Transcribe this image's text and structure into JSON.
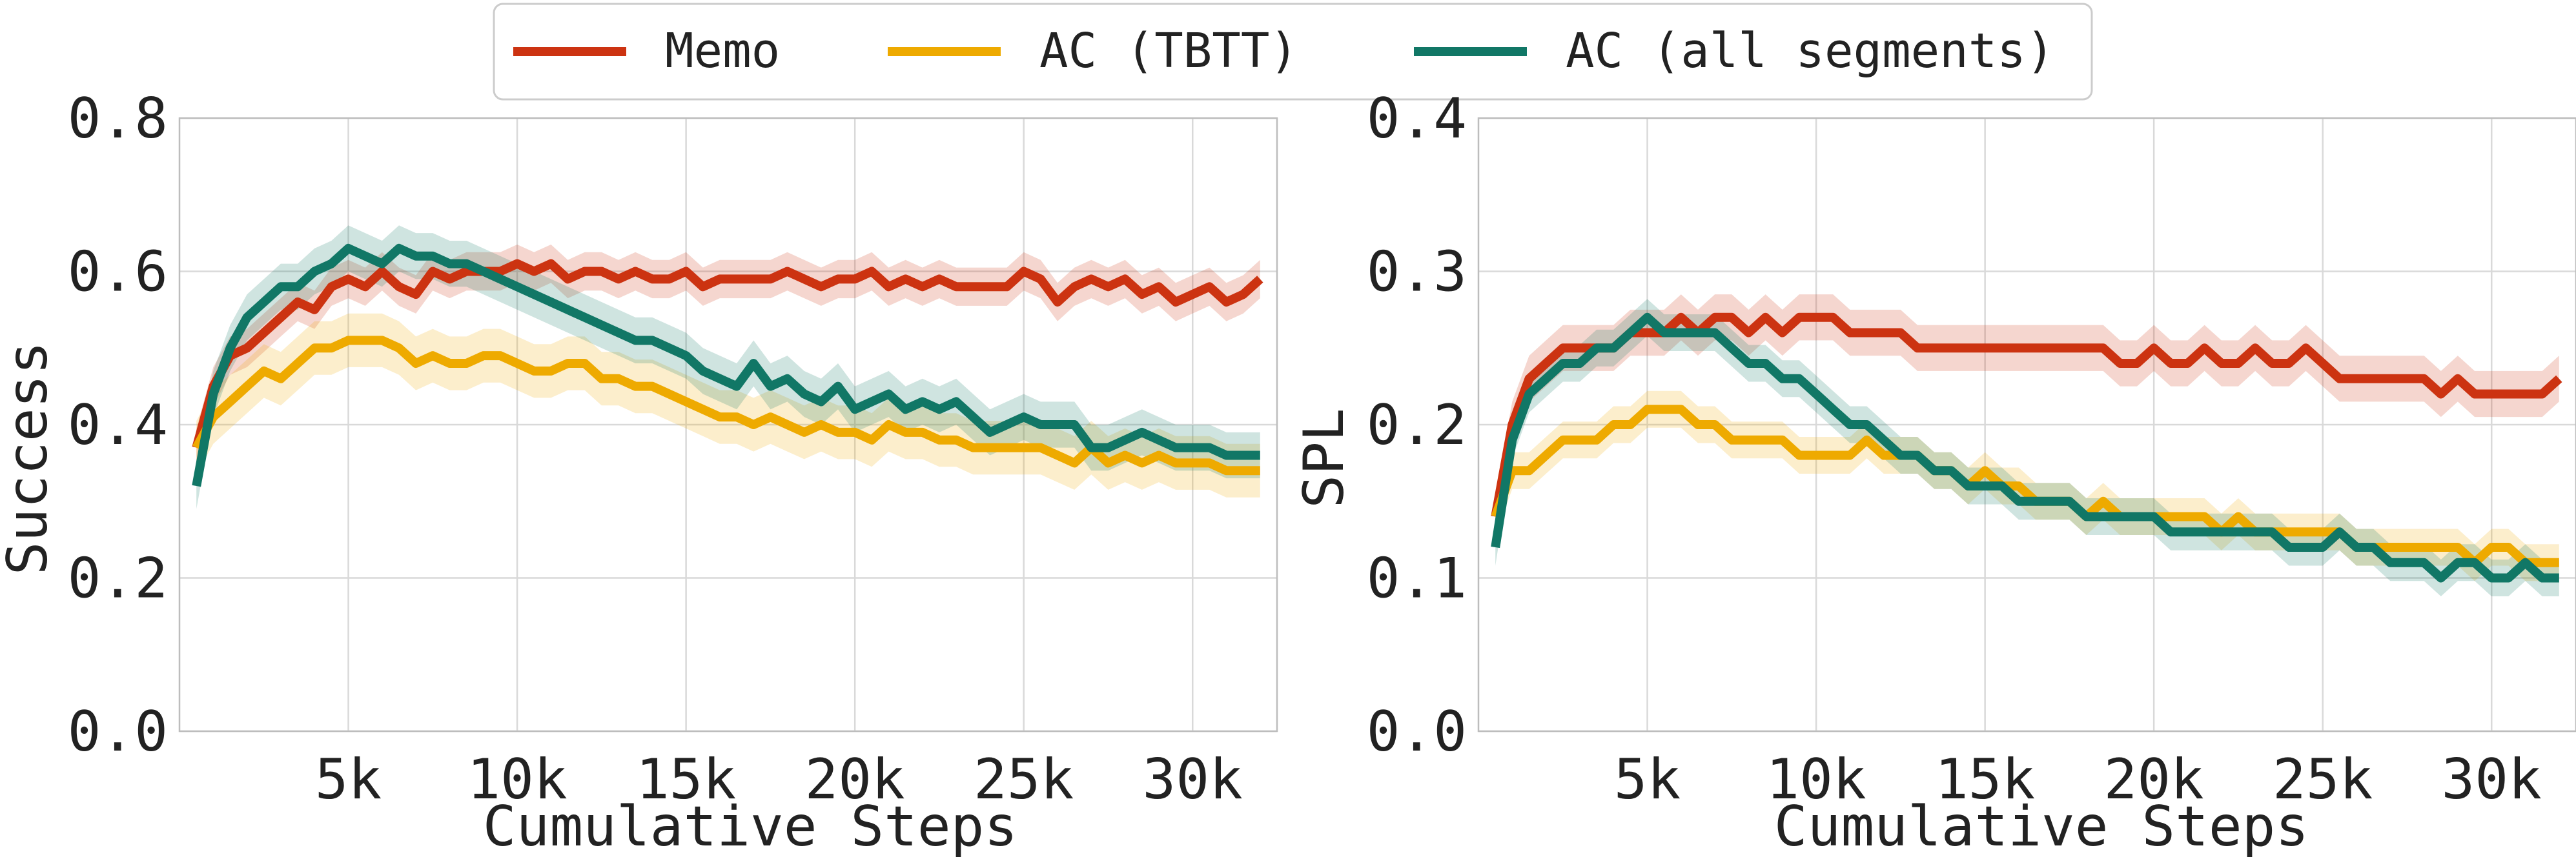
{
  "legend": {
    "entries": [
      {
        "label": "Memo",
        "color": "#cc3311"
      },
      {
        "label": "AC (TBTT)",
        "color": "#eeaa00"
      },
      {
        "label": "AC (all segments)",
        "color": "#117766"
      }
    ]
  },
  "chart_data": [
    {
      "type": "line",
      "title": "",
      "xlabel": "Cumulative Steps",
      "ylabel": "Success",
      "xlim": [
        0,
        32500
      ],
      "ylim": [
        0.0,
        0.8
      ],
      "xticks": [
        5000,
        10000,
        15000,
        20000,
        25000,
        30000
      ],
      "xtick_labels": [
        "5k",
        "10k",
        "15k",
        "20k",
        "25k",
        "30k"
      ],
      "yticks": [
        0.0,
        0.2,
        0.4,
        0.6,
        0.8
      ],
      "ytick_labels": [
        "0.0",
        "0.2",
        "0.4",
        "0.6",
        "0.8"
      ],
      "grid": true,
      "x": [
        500,
        1000,
        1500,
        2000,
        2500,
        3000,
        3500,
        4000,
        4500,
        5000,
        5500,
        6000,
        6500,
        7000,
        7500,
        8000,
        8500,
        9000,
        9500,
        10000,
        10500,
        11000,
        11500,
        12000,
        12500,
        13000,
        13500,
        14000,
        14500,
        15000,
        15500,
        16000,
        16500,
        17000,
        17500,
        18000,
        18500,
        19000,
        19500,
        20000,
        20500,
        21000,
        21500,
        22000,
        22500,
        23000,
        23500,
        24000,
        24500,
        25000,
        25500,
        26000,
        26500,
        27000,
        27500,
        28000,
        28500,
        29000,
        29500,
        30000,
        30500,
        31000,
        31500,
        32000
      ],
      "series": [
        {
          "name": "Memo",
          "band": 0.025,
          "values": [
            0.37,
            0.45,
            0.49,
            0.5,
            0.52,
            0.54,
            0.56,
            0.55,
            0.58,
            0.59,
            0.58,
            0.6,
            0.58,
            0.57,
            0.6,
            0.59,
            0.6,
            0.6,
            0.6,
            0.61,
            0.6,
            0.61,
            0.59,
            0.6,
            0.6,
            0.59,
            0.6,
            0.59,
            0.59,
            0.6,
            0.58,
            0.59,
            0.59,
            0.59,
            0.59,
            0.6,
            0.59,
            0.58,
            0.59,
            0.59,
            0.6,
            0.58,
            0.59,
            0.58,
            0.59,
            0.58,
            0.58,
            0.58,
            0.58,
            0.6,
            0.59,
            0.56,
            0.58,
            0.59,
            0.58,
            0.59,
            0.57,
            0.58,
            0.56,
            0.57,
            0.58,
            0.56,
            0.57,
            0.59
          ]
        },
        {
          "name": "AC (TBTT)",
          "band": 0.035,
          "values": [
            0.37,
            0.41,
            0.43,
            0.45,
            0.47,
            0.46,
            0.48,
            0.5,
            0.5,
            0.51,
            0.51,
            0.51,
            0.5,
            0.48,
            0.49,
            0.48,
            0.48,
            0.49,
            0.49,
            0.48,
            0.47,
            0.47,
            0.48,
            0.48,
            0.46,
            0.46,
            0.45,
            0.45,
            0.44,
            0.43,
            0.42,
            0.41,
            0.41,
            0.4,
            0.41,
            0.4,
            0.39,
            0.4,
            0.39,
            0.39,
            0.38,
            0.4,
            0.39,
            0.39,
            0.38,
            0.38,
            0.37,
            0.37,
            0.37,
            0.37,
            0.37,
            0.36,
            0.35,
            0.37,
            0.35,
            0.36,
            0.35,
            0.36,
            0.35,
            0.35,
            0.35,
            0.34,
            0.34,
            0.34
          ]
        },
        {
          "name": "AC (all segments)",
          "band": 0.03,
          "values": [
            0.32,
            0.44,
            0.5,
            0.54,
            0.56,
            0.58,
            0.58,
            0.6,
            0.61,
            0.63,
            0.62,
            0.61,
            0.63,
            0.62,
            0.62,
            0.61,
            0.61,
            0.6,
            0.59,
            0.58,
            0.57,
            0.56,
            0.55,
            0.54,
            0.53,
            0.52,
            0.51,
            0.51,
            0.5,
            0.49,
            0.47,
            0.46,
            0.45,
            0.48,
            0.45,
            0.46,
            0.44,
            0.43,
            0.45,
            0.42,
            0.43,
            0.44,
            0.42,
            0.43,
            0.42,
            0.43,
            0.41,
            0.39,
            0.4,
            0.41,
            0.4,
            0.4,
            0.4,
            0.37,
            0.37,
            0.38,
            0.39,
            0.38,
            0.37,
            0.37,
            0.37,
            0.36,
            0.36,
            0.36
          ]
        }
      ]
    },
    {
      "type": "line",
      "title": "",
      "xlabel": "Cumulative Steps",
      "ylabel": "SPL",
      "xlim": [
        0,
        32500
      ],
      "ylim": [
        0.0,
        0.4
      ],
      "xticks": [
        5000,
        10000,
        15000,
        20000,
        25000,
        30000
      ],
      "xtick_labels": [
        "5k",
        "10k",
        "15k",
        "20k",
        "25k",
        "30k"
      ],
      "yticks": [
        0.0,
        0.1,
        0.2,
        0.3,
        0.4
      ],
      "ytick_labels": [
        "0.0",
        "0.1",
        "0.2",
        "0.3",
        "0.4"
      ],
      "grid": true,
      "x": [
        500,
        1000,
        1500,
        2000,
        2500,
        3000,
        3500,
        4000,
        4500,
        5000,
        5500,
        6000,
        6500,
        7000,
        7500,
        8000,
        8500,
        9000,
        9500,
        10000,
        10500,
        11000,
        11500,
        12000,
        12500,
        13000,
        13500,
        14000,
        14500,
        15000,
        15500,
        16000,
        16500,
        17000,
        17500,
        18000,
        18500,
        19000,
        19500,
        20000,
        20500,
        21000,
        21500,
        22000,
        22500,
        23000,
        23500,
        24000,
        24500,
        25000,
        25500,
        26000,
        26500,
        27000,
        27500,
        28000,
        28500,
        29000,
        29500,
        30000,
        30500,
        31000,
        31500,
        32000
      ],
      "series": [
        {
          "name": "Memo",
          "band": 0.015,
          "values": [
            0.14,
            0.2,
            0.23,
            0.24,
            0.25,
            0.25,
            0.25,
            0.25,
            0.26,
            0.26,
            0.26,
            0.27,
            0.26,
            0.27,
            0.27,
            0.26,
            0.27,
            0.26,
            0.27,
            0.27,
            0.27,
            0.26,
            0.26,
            0.26,
            0.26,
            0.25,
            0.25,
            0.25,
            0.25,
            0.25,
            0.25,
            0.25,
            0.25,
            0.25,
            0.25,
            0.25,
            0.25,
            0.24,
            0.24,
            0.25,
            0.24,
            0.24,
            0.25,
            0.24,
            0.24,
            0.25,
            0.24,
            0.24,
            0.25,
            0.24,
            0.23,
            0.23,
            0.23,
            0.23,
            0.23,
            0.23,
            0.22,
            0.23,
            0.22,
            0.22,
            0.22,
            0.22,
            0.22,
            0.23
          ]
        },
        {
          "name": "AC (TBTT)",
          "band": 0.012,
          "values": [
            0.14,
            0.17,
            0.17,
            0.18,
            0.19,
            0.19,
            0.19,
            0.2,
            0.2,
            0.21,
            0.21,
            0.21,
            0.2,
            0.2,
            0.19,
            0.19,
            0.19,
            0.19,
            0.18,
            0.18,
            0.18,
            0.18,
            0.19,
            0.18,
            0.18,
            0.18,
            0.17,
            0.17,
            0.16,
            0.17,
            0.16,
            0.16,
            0.15,
            0.15,
            0.15,
            0.14,
            0.15,
            0.14,
            0.14,
            0.14,
            0.14,
            0.14,
            0.14,
            0.13,
            0.14,
            0.13,
            0.13,
            0.13,
            0.13,
            0.13,
            0.13,
            0.12,
            0.12,
            0.12,
            0.12,
            0.12,
            0.12,
            0.12,
            0.11,
            0.12,
            0.12,
            0.11,
            0.11,
            0.11
          ]
        },
        {
          "name": "AC (all segments)",
          "band": 0.012,
          "values": [
            0.12,
            0.19,
            0.22,
            0.23,
            0.24,
            0.24,
            0.25,
            0.25,
            0.26,
            0.27,
            0.26,
            0.26,
            0.26,
            0.26,
            0.25,
            0.24,
            0.24,
            0.23,
            0.23,
            0.22,
            0.21,
            0.2,
            0.2,
            0.19,
            0.18,
            0.18,
            0.17,
            0.17,
            0.16,
            0.16,
            0.16,
            0.15,
            0.15,
            0.15,
            0.15,
            0.14,
            0.14,
            0.14,
            0.14,
            0.14,
            0.13,
            0.13,
            0.13,
            0.13,
            0.13,
            0.13,
            0.13,
            0.12,
            0.12,
            0.12,
            0.13,
            0.12,
            0.12,
            0.11,
            0.11,
            0.11,
            0.1,
            0.11,
            0.11,
            0.1,
            0.1,
            0.11,
            0.1,
            0.1
          ]
        }
      ]
    }
  ]
}
